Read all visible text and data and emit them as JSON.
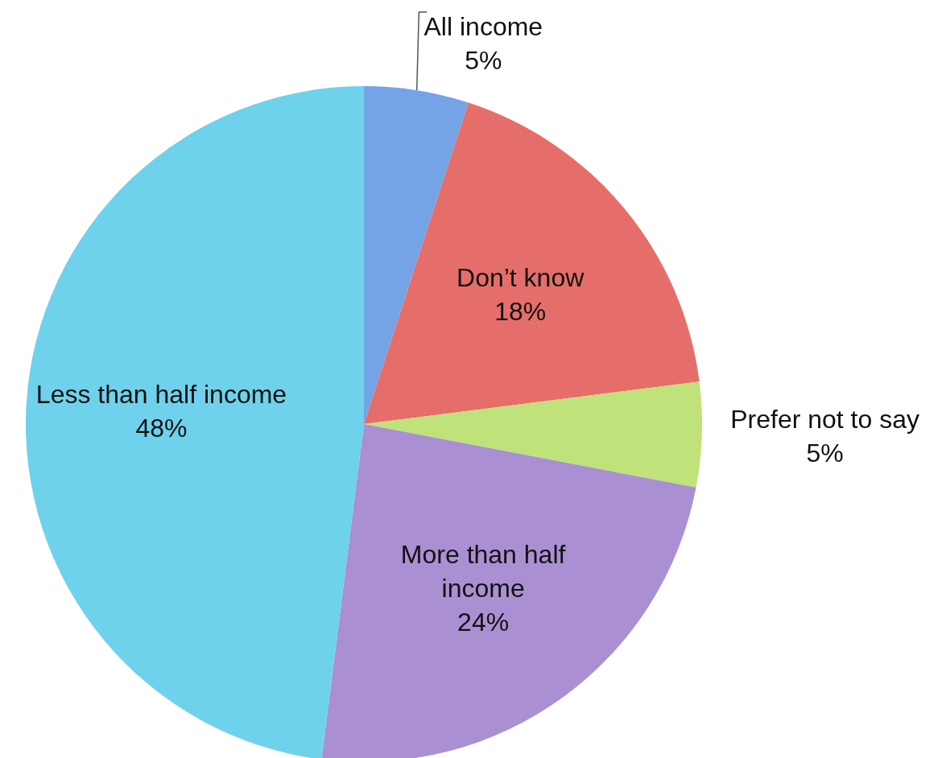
{
  "chart_data": {
    "type": "pie",
    "categories": [
      "All income",
      "Don’t know",
      "Prefer not to say",
      "More than half income",
      "Less than half income"
    ],
    "values": [
      5,
      18,
      5,
      24,
      48
    ],
    "value_labels": [
      "5%",
      "18%",
      "5%",
      "24%",
      "48%"
    ],
    "colors": [
      "#74a3e6",
      "#e66e6a",
      "#bfe27a",
      "#ab8fd3",
      "#6fd2ec"
    ],
    "legend": false
  }
}
